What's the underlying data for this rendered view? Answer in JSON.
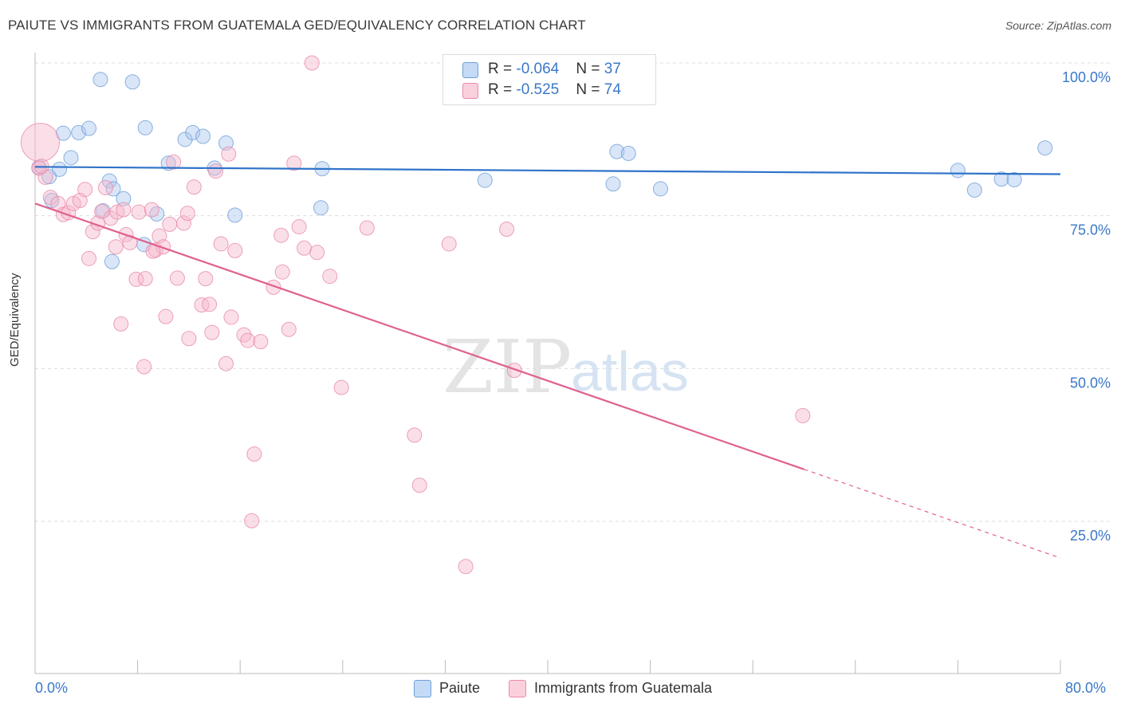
{
  "chart_data": {
    "type": "scatter",
    "title": "PAIUTE VS IMMIGRANTS FROM GUATEMALA GED/EQUIVALENCY CORRELATION CHART",
    "source": "Source: ZipAtlas.com",
    "ylabel": "GED/Equivalency",
    "xlim": [
      0,
      80
    ],
    "ylim": [
      0,
      105
    ],
    "y_ticks": [
      {
        "value": 25,
        "label": "25.0%"
      },
      {
        "value": 50,
        "label": "50.0%"
      },
      {
        "value": 75,
        "label": "75.0%"
      },
      {
        "value": 100,
        "label": "100.0%"
      }
    ],
    "x_tick_labels": {
      "min": "0.0%",
      "max": "80.0%"
    },
    "grid": true,
    "legend_position": "top-center",
    "watermark": "ZIPatlas",
    "series": [
      {
        "name": "Paiute",
        "color": "#a8c8f0",
        "line_color": "#2f73c9",
        "stats": {
          "r_label": "R = ",
          "r": "-0.064",
          "n_label": "N = ",
          "n": "37"
        },
        "trend": {
          "x0": 0,
          "y0": 83.0,
          "x1": 80,
          "y1": 81.8
        },
        "points": [
          [
            0.3,
            82.9
          ],
          [
            1.1,
            81.4
          ],
          [
            1.3,
            77.5
          ],
          [
            1.9,
            82.6
          ],
          [
            2.2,
            88.5
          ],
          [
            2.8,
            84.5
          ],
          [
            3.4,
            88.6
          ],
          [
            4.2,
            89.3
          ],
          [
            5.1,
            97.3
          ],
          [
            5.3,
            75.8
          ],
          [
            5.8,
            80.7
          ],
          [
            6.1,
            79.4
          ],
          [
            6.9,
            77.8
          ],
          [
            7.6,
            96.9
          ],
          [
            8.5,
            70.3
          ],
          [
            8.6,
            89.4
          ],
          [
            9.5,
            75.3
          ],
          [
            10.4,
            83.6
          ],
          [
            11.7,
            87.5
          ],
          [
            12.3,
            88.6
          ],
          [
            13.1,
            88.0
          ],
          [
            14.0,
            82.8
          ],
          [
            14.9,
            86.9
          ],
          [
            15.6,
            75.1
          ],
          [
            22.3,
            76.3
          ],
          [
            22.4,
            82.7
          ],
          [
            35.1,
            80.8
          ],
          [
            45.1,
            80.2
          ],
          [
            45.4,
            85.5
          ],
          [
            46.3,
            85.2
          ],
          [
            48.8,
            79.4
          ],
          [
            72.0,
            82.4
          ],
          [
            73.3,
            79.2
          ],
          [
            75.4,
            81.0
          ],
          [
            76.4,
            80.9
          ],
          [
            78.8,
            86.1
          ],
          [
            6.0,
            67.5
          ]
        ]
      },
      {
        "name": "Immigrants from Guatemala",
        "color": "#f7b9cc",
        "line_color": "#e0618e",
        "stats": {
          "r_label": "R = ",
          "r": "-0.525",
          "n_label": "N = ",
          "n": "74"
        },
        "trend": {
          "x0": 0,
          "y0": 77.0,
          "x1": 80,
          "y1": 19.0,
          "solid_until": 60
        },
        "points": [
          [
            0.3,
            82.8
          ],
          [
            0.8,
            81.3
          ],
          [
            1.2,
            78.0
          ],
          [
            1.8,
            77.0
          ],
          [
            2.2,
            75.2
          ],
          [
            2.6,
            75.5
          ],
          [
            3.0,
            77.0
          ],
          [
            3.5,
            77.5
          ],
          [
            3.9,
            79.3
          ],
          [
            4.2,
            68.0
          ],
          [
            4.5,
            72.4
          ],
          [
            4.9,
            73.8
          ],
          [
            5.2,
            75.7
          ],
          [
            5.5,
            79.6
          ],
          [
            5.9,
            74.6
          ],
          [
            6.4,
            75.6
          ],
          [
            6.3,
            69.9
          ],
          [
            6.7,
            57.3
          ],
          [
            6.9,
            76.0
          ],
          [
            7.1,
            71.9
          ],
          [
            7.4,
            70.6
          ],
          [
            7.9,
            64.6
          ],
          [
            8.1,
            75.6
          ],
          [
            8.6,
            64.7
          ],
          [
            8.5,
            50.3
          ],
          [
            9.1,
            76.0
          ],
          [
            9.4,
            69.4
          ],
          [
            9.7,
            71.7
          ],
          [
            10.0,
            69.9
          ],
          [
            10.2,
            58.5
          ],
          [
            10.5,
            73.6
          ],
          [
            10.8,
            83.8
          ],
          [
            11.1,
            64.8
          ],
          [
            11.6,
            73.8
          ],
          [
            11.9,
            75.4
          ],
          [
            12.4,
            79.7
          ],
          [
            13.0,
            60.4
          ],
          [
            13.3,
            64.7
          ],
          [
            13.6,
            60.5
          ],
          [
            13.8,
            55.9
          ],
          [
            14.1,
            82.3
          ],
          [
            14.5,
            70.4
          ],
          [
            14.9,
            50.8
          ],
          [
            15.1,
            85.1
          ],
          [
            15.3,
            58.4
          ],
          [
            15.6,
            69.3
          ],
          [
            16.3,
            55.5
          ],
          [
            16.6,
            54.6
          ],
          [
            16.9,
            25.1
          ],
          [
            17.1,
            36.0
          ],
          [
            17.6,
            54.4
          ],
          [
            18.6,
            63.3
          ],
          [
            19.2,
            71.8
          ],
          [
            19.3,
            65.8
          ],
          [
            19.8,
            56.4
          ],
          [
            20.2,
            83.6
          ],
          [
            20.6,
            73.2
          ],
          [
            21.0,
            69.7
          ],
          [
            21.6,
            100.0
          ],
          [
            22.0,
            69.0
          ],
          [
            23.0,
            65.1
          ],
          [
            23.9,
            46.9
          ],
          [
            25.9,
            73.0
          ],
          [
            29.6,
            39.1
          ],
          [
            30.0,
            30.9
          ],
          [
            32.3,
            70.4
          ],
          [
            33.6,
            17.6
          ],
          [
            36.8,
            72.8
          ],
          [
            37.4,
            49.7
          ],
          [
            59.9,
            42.3
          ],
          [
            0.4,
            87.0
          ],
          [
            0.5,
            83.1
          ],
          [
            12.0,
            54.9
          ],
          [
            9.2,
            69.2
          ]
        ]
      }
    ]
  }
}
